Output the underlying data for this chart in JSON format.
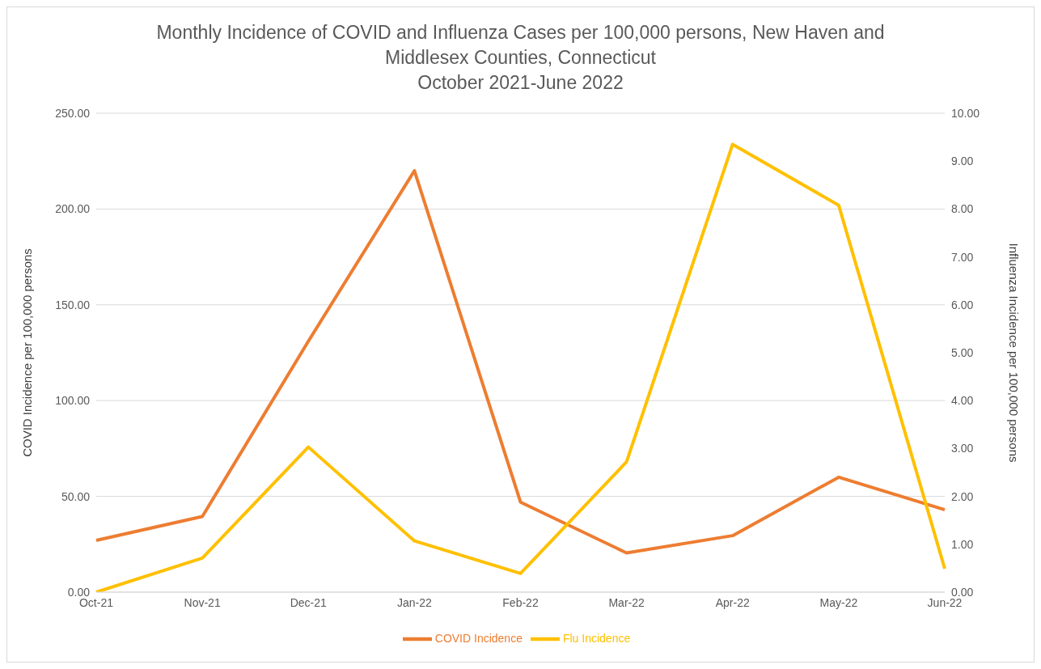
{
  "chart_data": {
    "type": "line",
    "title": "Monthly Incidence of COVID and Influenza Cases per 100,000 persons, New Haven and Middlesex Counties, Connecticut",
    "subtitle": "October 2021-June 2022",
    "ylabel": "COVID Incidence per 100,000 persons",
    "y2label": "Influenza Incidence per 100,000 persons",
    "categories": [
      "Oct-21",
      "Nov-21",
      "Dec-21",
      "Jan-22",
      "Feb-22",
      "Mar-22",
      "Apr-22",
      "May-22",
      "Jun-22"
    ],
    "series": [
      {
        "name": "COVID Incidence",
        "color": "#ed7d31",
        "values": [
          27,
          39.5,
          131,
          220,
          47,
          20.5,
          29.5,
          60,
          43
        ]
      },
      {
        "name": "Flu Incidence",
        "color": "#ffc000",
        "axis": "y2",
        "values": [
          0,
          0.71,
          3.03,
          1.07,
          0.39,
          2.72,
          9.35,
          8.08,
          0.49
        ]
      }
    ],
    "ylim": [
      0,
      250
    ],
    "yticks": [
      {
        "value": 0,
        "label": "0.00"
      },
      {
        "value": 50,
        "label": "50.00"
      },
      {
        "value": 100,
        "label": "100.00"
      },
      {
        "value": 150,
        "label": "150.00"
      },
      {
        "value": 200,
        "label": "200.00"
      },
      {
        "value": 250,
        "label": "250.00"
      }
    ],
    "y2lim": [
      0,
      10
    ],
    "y2ticks": [
      {
        "value": 0,
        "label": "0.00"
      },
      {
        "value": 1,
        "label": "1.00"
      },
      {
        "value": 2,
        "label": "2.00"
      },
      {
        "value": 3,
        "label": "3.00"
      },
      {
        "value": 4,
        "label": "4.00"
      },
      {
        "value": 5,
        "label": "5.00"
      },
      {
        "value": 6,
        "label": "6.00"
      },
      {
        "value": 7,
        "label": "7.00"
      },
      {
        "value": 8,
        "label": "8.00"
      },
      {
        "value": 9,
        "label": "9.00"
      },
      {
        "value": 10,
        "label": "10.00"
      }
    ],
    "grid": "y",
    "legend": "bottom",
    "marker": "none",
    "line_style": "solid"
  }
}
